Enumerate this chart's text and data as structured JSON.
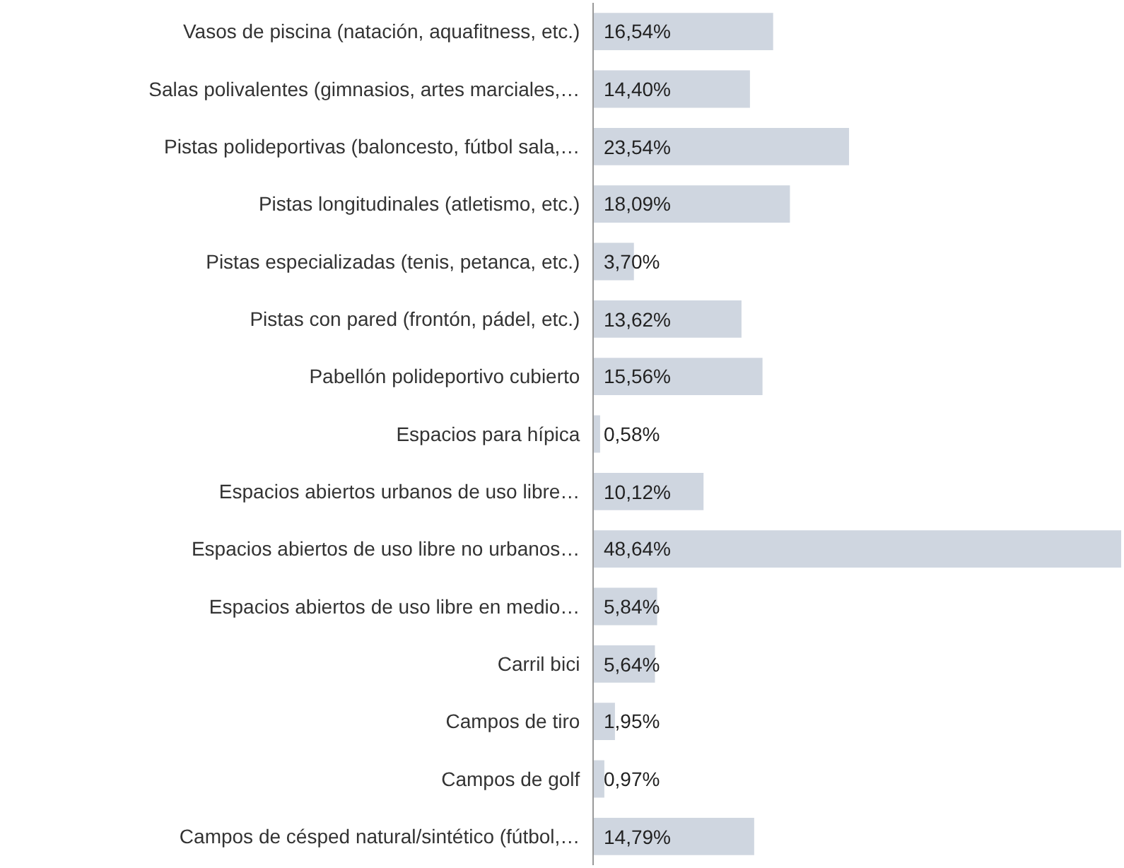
{
  "chart_data": {
    "type": "bar",
    "orientation": "horizontal",
    "categories": [
      "Vasos de piscina (natación, aquafitness, etc.)",
      "Salas polivalentes (gimnasios, artes marciales,…",
      "Pistas polideportivas (baloncesto, fútbol sala,…",
      "Pistas longitudinales (atletismo, etc.)",
      "Pistas especializadas (tenis, petanca, etc.)",
      "Pistas con pared (frontón, pádel, etc.)",
      "Pabellón polideportivo cubierto",
      "Espacios para hípica",
      "Espacios abiertos urbanos de uso libre…",
      "Espacios abiertos de uso libre no urbanos…",
      "Espacios abiertos de uso libre en medio…",
      "Carril bici",
      "Campos de tiro",
      "Campos de golf",
      "Campos de césped natural/sintético (fútbol,…"
    ],
    "values": [
      16.54,
      14.4,
      23.54,
      18.09,
      3.7,
      13.62,
      15.56,
      0.58,
      10.12,
      48.64,
      5.84,
      5.64,
      1.95,
      0.97,
      14.79
    ],
    "value_labels": [
      "16,54%",
      "14,40%",
      "23,54%",
      "18,09%",
      "3,70%",
      "13,62%",
      "15,56%",
      "0,58%",
      "10,12%",
      "48,64%",
      "5,84%",
      "5,64%",
      "1,95%",
      "0,97%",
      "14,79%"
    ],
    "color": "#cfd6e0"
  }
}
